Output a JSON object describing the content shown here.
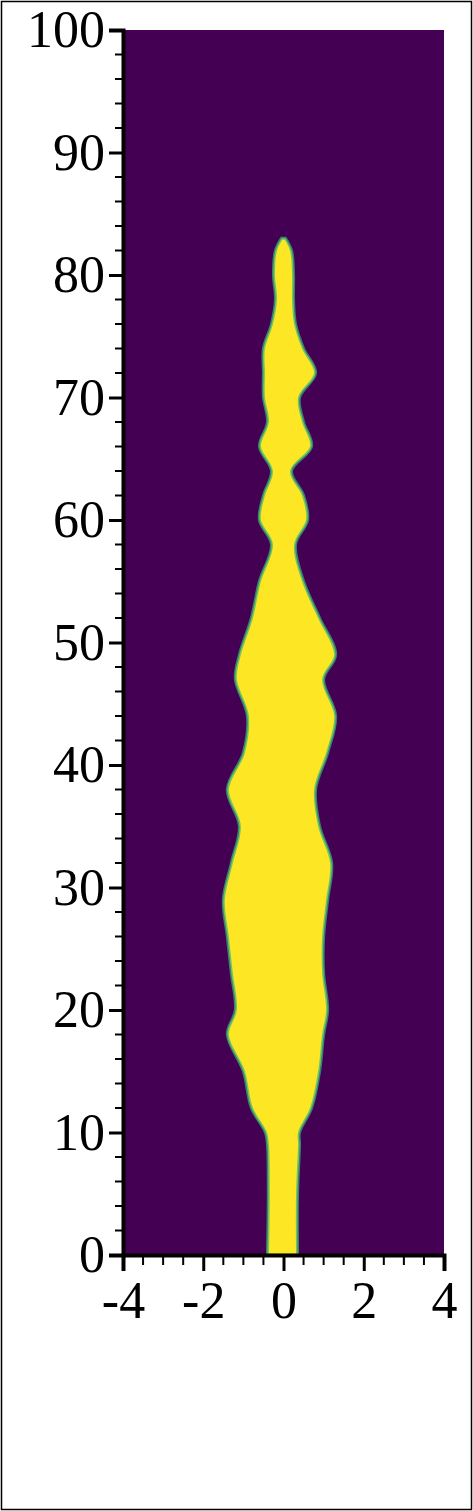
{
  "chart_data": {
    "type": "area",
    "color": "#fde725",
    "y": [
      0,
      5,
      9,
      10,
      12,
      15,
      18,
      20,
      23,
      26,
      29,
      32,
      35,
      38,
      41,
      44,
      47,
      49,
      52,
      55,
      58,
      60,
      62,
      64,
      66,
      68,
      70,
      72,
      74,
      76,
      78,
      80,
      82,
      83
    ],
    "x_lower": [
      -0.4,
      -0.38,
      -0.4,
      -0.45,
      -0.8,
      -1.0,
      -1.4,
      -1.2,
      -1.3,
      -1.4,
      -1.5,
      -1.3,
      -1.1,
      -1.4,
      -1.0,
      -0.9,
      -1.2,
      -1.1,
      -0.8,
      -0.6,
      -0.3,
      -0.6,
      -0.5,
      -0.3,
      -0.6,
      -0.4,
      -0.5,
      -0.5,
      -0.5,
      -0.3,
      -0.2,
      -0.25,
      -0.2,
      -0.05
    ],
    "x_upper": [
      0.35,
      0.35,
      0.4,
      0.4,
      0.7,
      0.9,
      1.0,
      1.1,
      1.0,
      1.0,
      1.1,
      1.2,
      0.9,
      0.8,
      1.1,
      1.3,
      1.0,
      1.3,
      0.9,
      0.5,
      0.3,
      0.6,
      0.5,
      0.2,
      0.7,
      0.5,
      0.4,
      0.8,
      0.5,
      0.3,
      0.25,
      0.25,
      0.2,
      0.05
    ],
    "xlim": [
      -4,
      4
    ],
    "xticks": [
      -4,
      -2,
      0,
      2,
      4
    ],
    "minor_xticks": [
      -3.5,
      -3,
      -2.5,
      -1.5,
      -1,
      -0.5,
      0.5,
      1,
      1.5,
      2.5,
      3,
      3.5
    ],
    "ylim": [
      0,
      100
    ],
    "yticks": [
      0,
      10,
      20,
      30,
      40,
      50,
      60,
      70,
      80,
      90,
      100
    ],
    "minor_yticks": [
      2,
      4,
      6,
      8,
      12,
      14,
      16,
      18,
      22,
      24,
      26,
      28,
      32,
      34,
      36,
      38,
      42,
      44,
      46,
      48,
      52,
      54,
      56,
      58,
      62,
      64,
      66,
      68,
      72,
      74,
      76,
      78,
      82,
      84,
      86,
      88,
      92,
      94,
      96,
      98
    ]
  }
}
